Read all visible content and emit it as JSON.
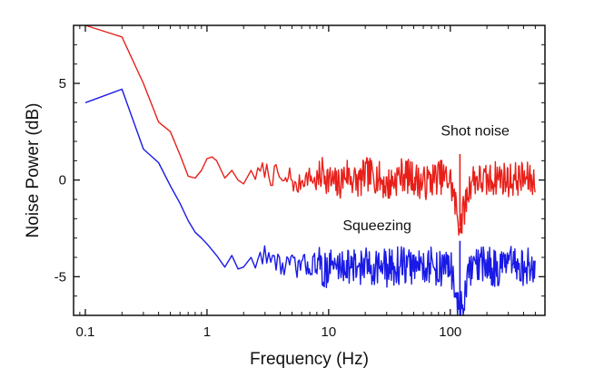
{
  "chart_data": {
    "type": "line",
    "title": "",
    "xlabel": "Frequency (Hz)",
    "ylabel": "Noise Power (dB)",
    "xscale": "log",
    "xlim": [
      0.08,
      600
    ],
    "ylim": [
      -7,
      8
    ],
    "xticks": [
      {
        "value": 0.1,
        "label": "0.1"
      },
      {
        "value": 1,
        "label": "1"
      },
      {
        "value": 10,
        "label": "10"
      },
      {
        "value": 100,
        "label": "100"
      }
    ],
    "yticks": [
      {
        "value": -5,
        "label": "-5"
      },
      {
        "value": 0,
        "label": "0"
      },
      {
        "value": 5,
        "label": "5"
      }
    ],
    "series": [
      {
        "name": "Shot noise",
        "color": "#e8201a",
        "label_anchor": {
          "x": 160,
          "y": 2.3
        },
        "x": [
          0.1,
          0.2,
          0.3,
          0.4,
          0.5,
          0.6,
          0.7,
          0.8,
          0.9,
          1.0,
          1.1,
          1.2,
          1.4,
          1.6,
          1.8,
          2.0,
          2.3,
          2.6,
          3.0,
          3.4,
          3.8,
          4.3,
          4.8,
          5.4,
          6.0,
          7.0,
          8.0,
          9.0,
          10,
          12,
          14,
          16,
          18,
          20,
          25,
          30,
          40,
          50,
          60,
          80,
          100,
          120,
          150,
          200,
          250,
          300,
          400,
          500
        ],
        "values": [
          8.0,
          7.4,
          5.0,
          3.0,
          2.5,
          1.3,
          0.2,
          0.1,
          0.5,
          1.1,
          1.2,
          1.0,
          0.1,
          0.5,
          0.0,
          -0.2,
          0.5,
          0.2,
          0.6,
          0.1,
          0.4,
          -0.3,
          0.3,
          -0.5,
          0.0,
          0.2,
          -0.2,
          0.5,
          0.0,
          -0.3,
          0.4,
          0.0,
          -0.1,
          0.3,
          0.2,
          -0.3,
          0.3,
          0.1,
          -0.2,
          0.2,
          0.0,
          -2.4,
          0.1,
          -0.1,
          0.2,
          0.0,
          0.1,
          -0.1
        ],
        "noise_from_hz": 2.5,
        "noise_amplitude_db": 0.9
      },
      {
        "name": "Squeezing",
        "color": "#1a1ae6",
        "label_anchor": {
          "x": 25,
          "y": -2.6
        },
        "x": [
          0.1,
          0.2,
          0.3,
          0.4,
          0.5,
          0.6,
          0.7,
          0.8,
          0.9,
          1.0,
          1.2,
          1.4,
          1.6,
          1.8,
          2.0,
          2.3,
          2.6,
          3.0,
          3.4,
          3.8,
          4.3,
          4.8,
          5.4,
          6.0,
          7.0,
          8.0,
          9.0,
          10,
          12,
          14,
          16,
          18,
          20,
          25,
          30,
          40,
          50,
          60,
          80,
          100,
          120,
          150,
          200,
          250,
          300,
          400,
          500
        ],
        "values": [
          4.0,
          4.7,
          1.6,
          0.9,
          -0.3,
          -1.2,
          -2.1,
          -2.7,
          -3.0,
          -3.3,
          -3.9,
          -4.5,
          -3.9,
          -4.6,
          -4.5,
          -4.0,
          -4.4,
          -3.6,
          -4.3,
          -4.1,
          -4.6,
          -4.2,
          -4.6,
          -4.3,
          -4.5,
          -4.2,
          -4.8,
          -4.4,
          -4.5,
          -4.3,
          -4.6,
          -4.4,
          -4.5,
          -4.4,
          -4.6,
          -4.4,
          -4.5,
          -4.3,
          -4.6,
          -4.4,
          -7.0,
          -4.5,
          -4.4,
          -4.6,
          -4.4,
          -4.5,
          -4.5
        ],
        "noise_from_hz": 2.5,
        "noise_amplitude_db": 1.0
      }
    ]
  }
}
